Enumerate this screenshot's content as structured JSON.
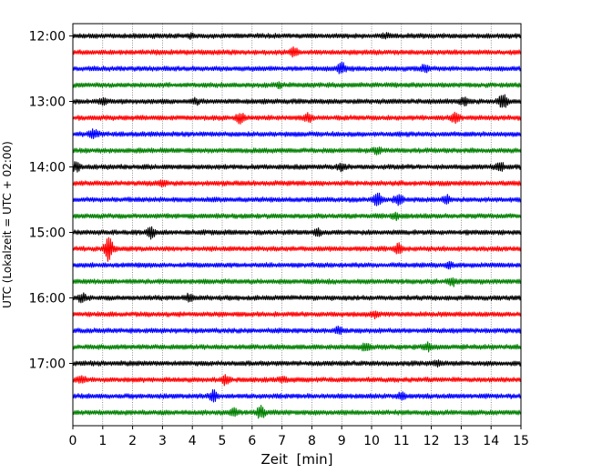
{
  "chart_data": {
    "type": "line",
    "title": "",
    "xlabel": "Zeit  [min]",
    "ylabel": "UTC (Lokalzeit = UTC + 02:00)",
    "xlim": [
      0,
      15
    ],
    "x_ticks": [
      0,
      1,
      2,
      3,
      4,
      5,
      6,
      7,
      8,
      9,
      10,
      11,
      12,
      13,
      14,
      15
    ],
    "x_grid": true,
    "y_tick_labels": [
      "12:00",
      "13:00",
      "14:00",
      "15:00",
      "16:00",
      "17:00"
    ],
    "trace_colors": [
      "#000000",
      "#ff0000",
      "#0000ff",
      "#008000"
    ],
    "series": [
      {
        "row_start": "12:00",
        "bursts": [
          {
            "x": 4.0,
            "amp": 1.5
          },
          {
            "x": 10.5,
            "amp": 1.5
          }
        ]
      },
      {
        "row_start": "12:15",
        "bursts": [
          {
            "x": 7.4,
            "amp": 4.5
          }
        ]
      },
      {
        "row_start": "12:30",
        "bursts": [
          {
            "x": 9.0,
            "amp": 5.5
          },
          {
            "x": 11.8,
            "amp": 3.5
          }
        ]
      },
      {
        "row_start": "12:45",
        "bursts": [
          {
            "x": 6.9,
            "amp": 2.0
          }
        ]
      },
      {
        "row_start": "13:00",
        "bursts": [
          {
            "x": 1.0,
            "amp": 2.5
          },
          {
            "x": 4.1,
            "amp": 2.0
          },
          {
            "x": 13.1,
            "amp": 4.0
          },
          {
            "x": 14.4,
            "amp": 7.0
          }
        ]
      },
      {
        "row_start": "13:15",
        "bursts": [
          {
            "x": 5.6,
            "amp": 5.0
          },
          {
            "x": 7.9,
            "amp": 4.0
          },
          {
            "x": 12.8,
            "amp": 5.0
          }
        ]
      },
      {
        "row_start": "13:30",
        "bursts": [
          {
            "x": 0.7,
            "amp": 4.5
          }
        ]
      },
      {
        "row_start": "13:45",
        "bursts": [
          {
            "x": 10.2,
            "amp": 3.0
          }
        ]
      },
      {
        "row_start": "14:00",
        "bursts": [
          {
            "x": 0.1,
            "amp": 4.0
          },
          {
            "x": 9.0,
            "amp": 3.5
          },
          {
            "x": 14.3,
            "amp": 3.5
          }
        ]
      },
      {
        "row_start": "14:15",
        "bursts": [
          {
            "x": 3.0,
            "amp": 2.0
          }
        ]
      },
      {
        "row_start": "14:30",
        "bursts": [
          {
            "x": 10.2,
            "amp": 7.0
          },
          {
            "x": 10.9,
            "amp": 5.5
          },
          {
            "x": 12.5,
            "amp": 3.5
          }
        ]
      },
      {
        "row_start": "14:45",
        "bursts": [
          {
            "x": 10.8,
            "amp": 2.5
          }
        ]
      },
      {
        "row_start": "15:00",
        "bursts": [
          {
            "x": 2.6,
            "amp": 5.0
          },
          {
            "x": 8.2,
            "amp": 2.5
          }
        ]
      },
      {
        "row_start": "15:15",
        "bursts": [
          {
            "x": 1.2,
            "amp": 13.0
          },
          {
            "x": 10.9,
            "amp": 4.0
          }
        ]
      },
      {
        "row_start": "15:30",
        "bursts": [
          {
            "x": 12.6,
            "amp": 3.0
          }
        ]
      },
      {
        "row_start": "15:45",
        "bursts": [
          {
            "x": 12.7,
            "amp": 3.5
          }
        ]
      },
      {
        "row_start": "16:00",
        "bursts": [
          {
            "x": 0.3,
            "amp": 3.5
          },
          {
            "x": 3.9,
            "amp": 3.0
          }
        ]
      },
      {
        "row_start": "16:15",
        "bursts": [
          {
            "x": 10.1,
            "amp": 2.5
          }
        ]
      },
      {
        "row_start": "16:30",
        "bursts": [
          {
            "x": 8.9,
            "amp": 3.0
          }
        ]
      },
      {
        "row_start": "16:45",
        "bursts": [
          {
            "x": 9.8,
            "amp": 3.5
          },
          {
            "x": 11.9,
            "amp": 3.0
          }
        ]
      },
      {
        "row_start": "17:00",
        "bursts": [
          {
            "x": 12.2,
            "amp": 2.0
          }
        ]
      },
      {
        "row_start": "17:15",
        "bursts": [
          {
            "x": 0.3,
            "amp": 3.0
          },
          {
            "x": 5.1,
            "amp": 4.0
          },
          {
            "x": 7.0,
            "amp": 2.0
          }
        ]
      },
      {
        "row_start": "17:30",
        "bursts": [
          {
            "x": 4.7,
            "amp": 5.0
          },
          {
            "x": 11.0,
            "amp": 3.0
          }
        ]
      },
      {
        "row_start": "17:45",
        "bursts": [
          {
            "x": 5.4,
            "amp": 3.5
          },
          {
            "x": 6.3,
            "amp": 6.0
          }
        ]
      }
    ]
  }
}
